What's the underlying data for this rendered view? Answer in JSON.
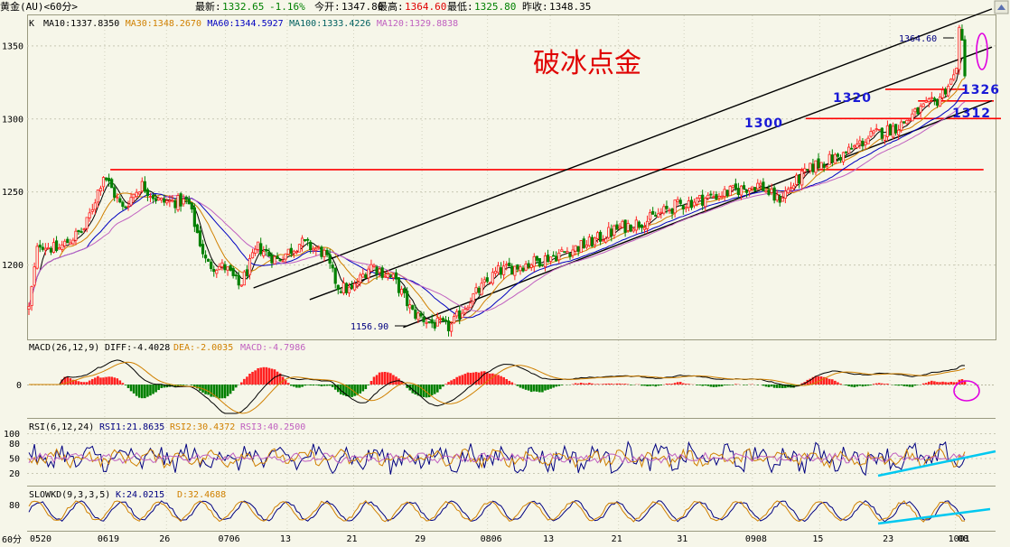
{
  "header": {
    "instrument": "黄金(AU)<60分>",
    "latest_label": "最新:",
    "latest_value": "1332.65",
    "change_pct": "-1.16%",
    "open_label": "今开:",
    "open_value": "1347.80",
    "high_label": "最高:",
    "high_value": "1364.60",
    "low_label": "最低:",
    "low_value": "1325.80",
    "prev_close_label": "昨收:",
    "prev_close_value": "1348.35"
  },
  "colors": {
    "up": "#ff2020",
    "down": "#008000",
    "ma10": "#000000",
    "ma30": "#d08000",
    "ma60": "#0000c0",
    "ma100": "#006060",
    "ma120": "#c060c0",
    "trend": "#000000",
    "support": "#ff0000",
    "annotation": "#1a1ad6",
    "circle": "#e000e0",
    "cyan": "#00c8f0"
  },
  "icons": {
    "scroll": "up-arrow-icon"
  },
  "main_panel": {
    "label": "K",
    "indicators": [
      {
        "text": "MA10:1337.8350",
        "color": "#000000"
      },
      {
        "text": "MA30:1348.2670",
        "color": "#d08000"
      },
      {
        "text": "MA60:1344.5927",
        "color": "#0000c0"
      },
      {
        "text": "MA100:1333.4226",
        "color": "#006060"
      },
      {
        "text": "MA120:1329.8838",
        "color": "#c060c0"
      }
    ],
    "title_annotation": "破冰点金",
    "high_label": "1364.60",
    "low_label": "1156.90",
    "level_labels": [
      "1320",
      "1326",
      "1300",
      "1312"
    ]
  },
  "macd_panel": {
    "label": "MACD(26,12,9)",
    "diff": "DIFF:-4.4028",
    "dea": "DEA:-2.0035",
    "macd": "MACD:-4.7986"
  },
  "rsi_panel": {
    "label": "RSI(6,12,24)",
    "rsi1": "RSI1:21.8635",
    "rsi2": "RSI2:30.4372",
    "rsi3": "RSI3:40.2500"
  },
  "kd_panel": {
    "label": "SLOWKD(9,3,3,5)",
    "k": "K:24.0215",
    "d": "D:32.4688"
  },
  "chart_data": [
    {
      "type": "candlestick",
      "title": "黄金(AU)<60分>",
      "ylim": [
        1150,
        1370
      ],
      "y_ticks": [
        "1350",
        "1300",
        "1250",
        "1200"
      ],
      "y_tick_values": [
        1350,
        1300,
        1250,
        1200
      ],
      "x_ticks": [
        "0520",
        "0619",
        "26",
        "0706",
        "13",
        "21",
        "29",
        "0806",
        "13",
        "21",
        "31",
        "0908",
        "15",
        "23",
        "1001",
        "08"
      ],
      "x_tick_positions": [
        0.0,
        0.081,
        0.147,
        0.21,
        0.276,
        0.347,
        0.42,
        0.49,
        0.557,
        0.63,
        0.7,
        0.773,
        0.845,
        0.92,
        0.99,
        1.0
      ],
      "close_path": {
        "x": [
          0,
          0.01,
          0.03,
          0.06,
          0.08,
          0.1,
          0.12,
          0.14,
          0.17,
          0.19,
          0.21,
          0.225,
          0.245,
          0.265,
          0.29,
          0.315,
          0.33,
          0.345,
          0.365,
          0.39,
          0.41,
          0.43,
          0.45,
          0.47,
          0.5,
          0.54,
          0.57,
          0.6,
          0.63,
          0.66,
          0.69,
          0.72,
          0.75,
          0.78,
          0.8,
          0.82,
          0.84,
          0.87,
          0.9,
          0.93,
          0.95,
          0.97,
          0.99,
          0.995,
          1.0
        ],
        "y": [
          1170,
          1215,
          1210,
          1225,
          1262,
          1238,
          1255,
          1243,
          1243,
          1200,
          1198,
          1185,
          1212,
          1203,
          1215,
          1208,
          1185,
          1182,
          1200,
          1190,
          1167,
          1160,
          1157,
          1175,
          1195,
          1202,
          1208,
          1215,
          1225,
          1230,
          1240,
          1245,
          1250,
          1255,
          1244,
          1257,
          1268,
          1275,
          1288,
          1295,
          1305,
          1312,
          1330,
          1364.6,
          1332.65
        ]
      },
      "series": [
        {
          "name": "MA10",
          "value": 1337.835
        },
        {
          "name": "MA30",
          "value": 1348.267
        },
        {
          "name": "MA60",
          "value": 1344.5927
        },
        {
          "name": "MA100",
          "value": 1333.4226
        },
        {
          "name": "MA120",
          "value": 1329.8838
        }
      ],
      "annotations": [
        {
          "text": "1364.60",
          "value": 1364.6
        },
        {
          "text": "1156.90",
          "value": 1156.9
        },
        {
          "text": "1320",
          "value": 1320
        },
        {
          "text": "1326",
          "value": 1326
        },
        {
          "text": "1300",
          "value": 1300
        },
        {
          "text": "1312",
          "value": 1312
        }
      ],
      "support_levels": [
        1265,
        1300,
        1312,
        1320
      ],
      "trend_lines": [
        {
          "from": [
            0.24,
            1184
          ],
          "to": [
            1.0,
            1368
          ]
        },
        {
          "from": [
            0.3,
            1176
          ],
          "to": [
            1.0,
            1342
          ]
        },
        {
          "from": [
            0.4,
            1157
          ],
          "to": [
            1.0,
            1305
          ]
        }
      ]
    },
    {
      "type": "bar",
      "title": "MACD(26,12,9)",
      "y_ticks": [
        "0"
      ],
      "series": [
        {
          "name": "DIFF",
          "value": -4.4028
        },
        {
          "name": "DEA",
          "value": -2.0035
        },
        {
          "name": "MACD",
          "value": -4.7986
        }
      ]
    },
    {
      "type": "line",
      "title": "RSI(6,12,24)",
      "ylim": [
        0,
        100
      ],
      "y_ticks": [
        "100",
        "80",
        "50",
        "20"
      ],
      "series": [
        {
          "name": "RSI1",
          "value": 21.8635
        },
        {
          "name": "RSI2",
          "value": 30.4372
        },
        {
          "name": "RSI3",
          "value": 40.25
        }
      ]
    },
    {
      "type": "line",
      "title": "SLOWKD(9,3,3,5)",
      "ylim": [
        0,
        100
      ],
      "y_ticks": [
        "80"
      ],
      "series": [
        {
          "name": "K",
          "value": 24.0215
        },
        {
          "name": "D",
          "value": 32.4688
        }
      ]
    }
  ],
  "footer": {
    "period_label": "60分"
  }
}
